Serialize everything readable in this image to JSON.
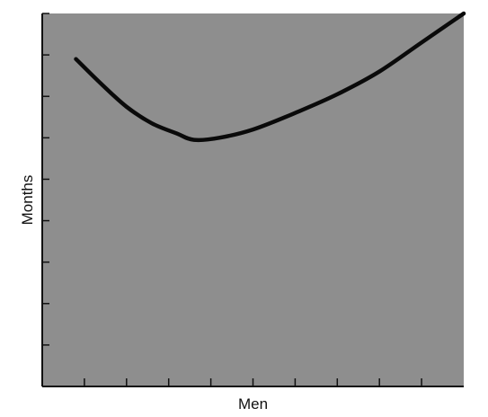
{
  "chart_data": {
    "type": "line",
    "title": "",
    "xlabel": "Men",
    "ylabel": "Months",
    "xlim": [
      0,
      10
    ],
    "ylim": [
      0,
      9
    ],
    "x_ticks": [
      1,
      2,
      3,
      4,
      5,
      6,
      7,
      8,
      9
    ],
    "y_ticks": [
      1,
      2,
      3,
      4,
      5,
      6,
      7,
      8,
      9
    ],
    "tick_labels_shown": false,
    "grid": false,
    "legend": "none",
    "series": [
      {
        "x": [
          0.8,
          1.4,
          2.0,
          2.6,
          3.2,
          3.6,
          4.2,
          5.0,
          6.0,
          7.0,
          8.0,
          9.0,
          10.0
        ],
        "y": [
          7.9,
          7.3,
          6.75,
          6.35,
          6.1,
          5.95,
          6.0,
          6.2,
          6.6,
          7.05,
          7.6,
          8.3,
          9.0
        ]
      }
    ],
    "colors": {
      "plot_background": "#8e8e8e",
      "line": "#0a0a0a",
      "axis": "#111111"
    }
  }
}
